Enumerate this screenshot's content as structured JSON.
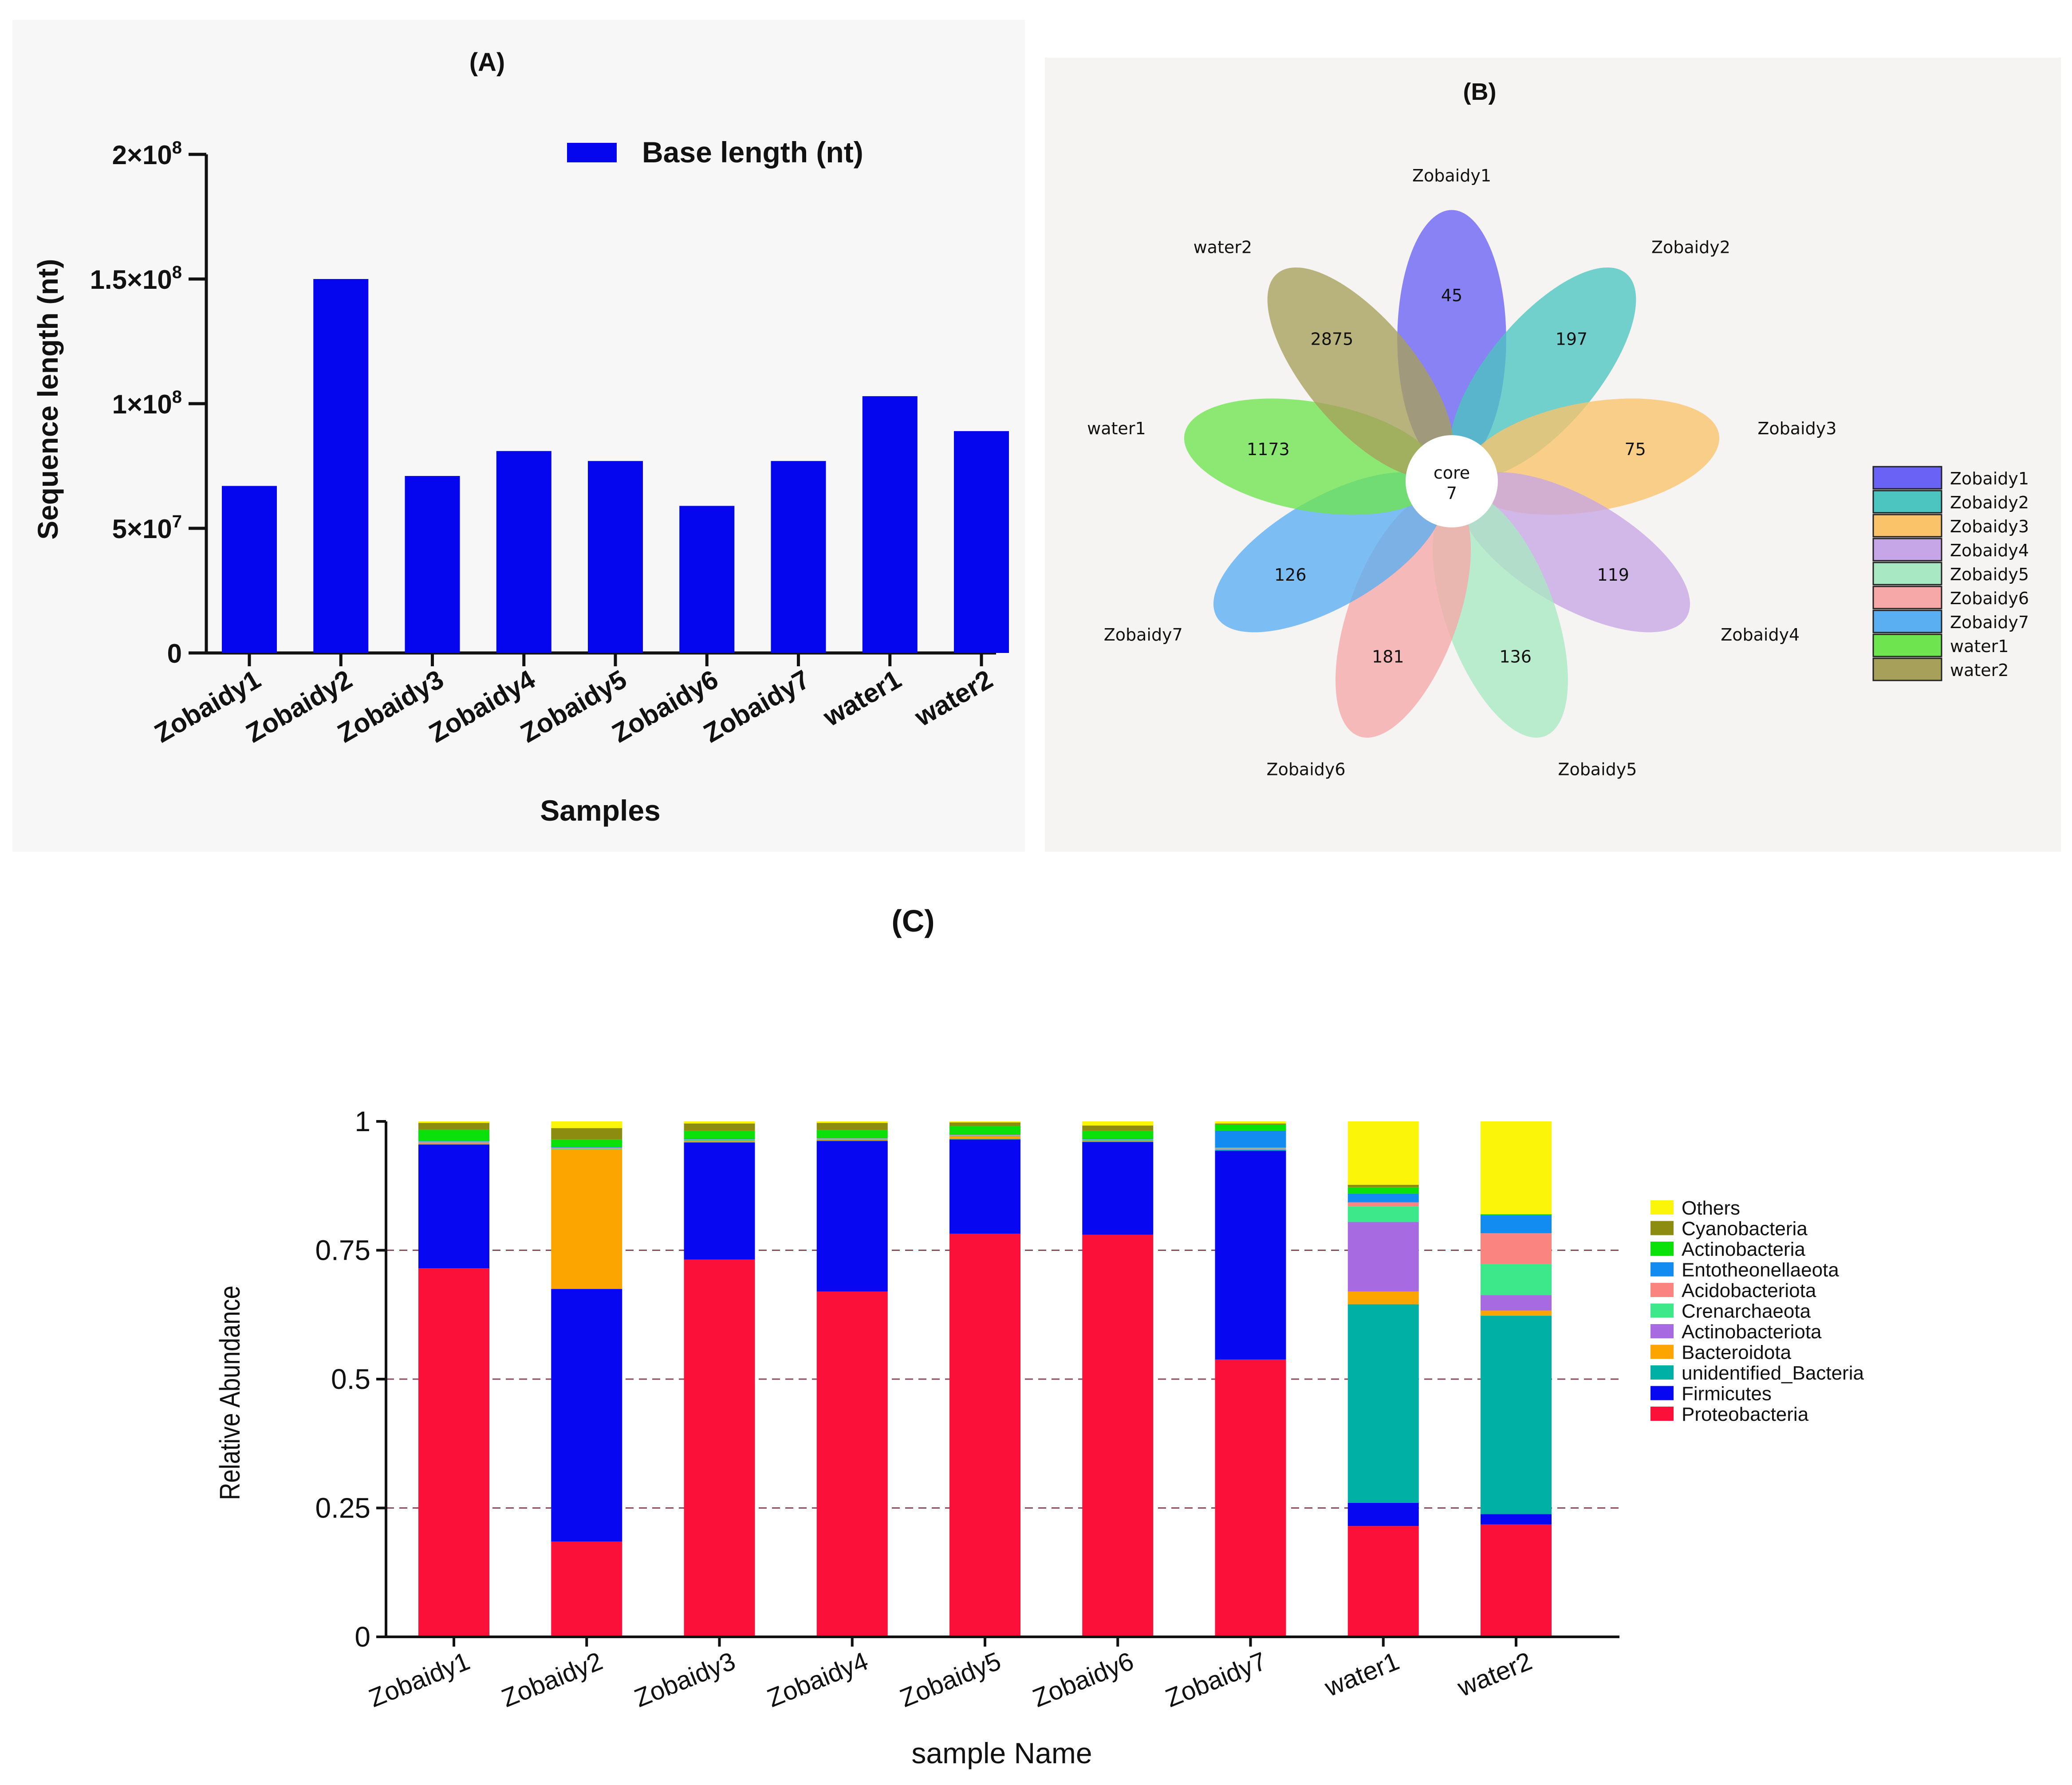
{
  "chart_data": [
    {
      "panel": "(A)",
      "type": "bar",
      "title": "(A)",
      "xlabel": "Samples",
      "ylabel": "Sequence length (nt)",
      "legend": "Base length (nt)",
      "legend_position": "top-right",
      "categories": [
        "Zobaidy1",
        "Zobaidy2",
        "Zobaidy3",
        "Zobaidy4",
        "Zobaidy5",
        "Zobaidy6",
        "Zobaidy7",
        "water1",
        "water2"
      ],
      "values": [
        67000000,
        150000000,
        71000000,
        81000000,
        77000000,
        59000000,
        77000000,
        103000000,
        89000000
      ],
      "yticks": [
        {
          "value": 0,
          "mant": "0",
          "exp": ""
        },
        {
          "value": 50000000,
          "mant": "5×10",
          "exp": "7"
        },
        {
          "value": 100000000,
          "mant": "1×10",
          "exp": "8"
        },
        {
          "value": 150000000,
          "mant": "1.5×10",
          "exp": "8"
        },
        {
          "value": 200000000,
          "mant": "2×10",
          "exp": "8"
        }
      ],
      "ylim": [
        0,
        200000000
      ],
      "color": "#0505ee"
    },
    {
      "panel": "(B)",
      "type": "flower",
      "title": "(B)",
      "core_label": "core",
      "core_value": "7",
      "petals": [
        {
          "name": "Zobaidy1",
          "value": "45",
          "angle": -90,
          "color": "#6a62f4"
        },
        {
          "name": "Zobaidy2",
          "value": "197",
          "angle": -50,
          "color": "#4cc4c0"
        },
        {
          "name": "Zobaidy3",
          "value": "75",
          "angle": -10,
          "color": "#fac36a"
        },
        {
          "name": "Zobaidy4",
          "value": "119",
          "angle": 30,
          "color": "#c6a6e6"
        },
        {
          "name": "Zobaidy5",
          "value": "136",
          "angle": 70,
          "color": "#a8e8c2"
        },
        {
          "name": "Zobaidy6",
          "value": "181",
          "angle": 110,
          "color": "#f6a8a8"
        },
        {
          "name": "Zobaidy7",
          "value": "126",
          "angle": 150,
          "color": "#5aaef2"
        },
        {
          "name": "water1",
          "value": "1173",
          "angle": 190,
          "color": "#6ee44e"
        },
        {
          "name": "water2",
          "value": "2875",
          "angle": 230,
          "color": "#a7a05a"
        }
      ],
      "legend_position": "right"
    },
    {
      "panel": "(C)",
      "type": "stacked-bar",
      "title": "(C)",
      "xlabel": "sample Name",
      "ylabel": "Relative Abundance",
      "categories": [
        "Zobaidy1",
        "Zobaidy2",
        "Zobaidy3",
        "Zobaidy4",
        "Zobaidy5",
        "Zobaidy6",
        "Zobaidy7",
        "water1",
        "water2"
      ],
      "ylim": [
        0,
        1
      ],
      "yticks": [
        "0",
        "0.25",
        "0.5",
        "0.75",
        "1"
      ],
      "gridlines": [
        0.25,
        0.5,
        0.75
      ],
      "legend_position": "right",
      "series": [
        {
          "name": "Proteobacteria",
          "color": "#fa1038",
          "values": [
            0.715,
            0.185,
            0.732,
            0.67,
            0.782,
            0.78,
            0.538,
            0.215,
            0.218
          ]
        },
        {
          "name": "Firmicutes",
          "color": "#0707f2",
          "values": [
            0.24,
            0.49,
            0.227,
            0.292,
            0.183,
            0.18,
            0.405,
            0.045,
            0.02
          ]
        },
        {
          "name": "unidentified_Bacteria",
          "color": "#00b0a4",
          "values": [
            0.001,
            0.0,
            0.001,
            0.001,
            0.001,
            0.001,
            0.002,
            0.385,
            0.385
          ]
        },
        {
          "name": "Bacteroidota",
          "color": "#fca400",
          "values": [
            0.002,
            0.27,
            0.002,
            0.001,
            0.005,
            0.001,
            0.001,
            0.025,
            0.01
          ]
        },
        {
          "name": "Actinobacteriota",
          "color": "#a86ae0",
          "values": [
            0.001,
            0.0,
            0.001,
            0.001,
            0.001,
            0.001,
            0.001,
            0.135,
            0.03
          ]
        },
        {
          "name": "Crenarchaeota",
          "color": "#3de88a",
          "values": [
            0.001,
            0.002,
            0.001,
            0.001,
            0.001,
            0.001,
            0.001,
            0.03,
            0.06
          ]
        },
        {
          "name": "Acidobacteriota",
          "color": "#f98480",
          "values": [
            0.001,
            0.002,
            0.001,
            0.001,
            0.001,
            0.001,
            0.001,
            0.008,
            0.06
          ]
        },
        {
          "name": "Entotheonellaeota",
          "color": "#128cf0",
          "values": [
            0.001,
            0.001,
            0.001,
            0.001,
            0.001,
            0.001,
            0.033,
            0.017,
            0.035
          ]
        },
        {
          "name": "Actinobacteria",
          "color": "#0ae00a",
          "values": [
            0.022,
            0.015,
            0.016,
            0.015,
            0.016,
            0.016,
            0.012,
            0.012,
            0.002
          ]
        },
        {
          "name": "Cyanobacteria",
          "color": "#8c8c10",
          "values": [
            0.013,
            0.022,
            0.014,
            0.014,
            0.007,
            0.01,
            0.002,
            0.005,
            0.0
          ]
        },
        {
          "name": "Others",
          "color": "#fbf50a",
          "values": [
            0.003,
            0.013,
            0.004,
            0.003,
            0.002,
            0.008,
            0.006,
            0.123,
            0.18
          ]
        }
      ]
    }
  ]
}
